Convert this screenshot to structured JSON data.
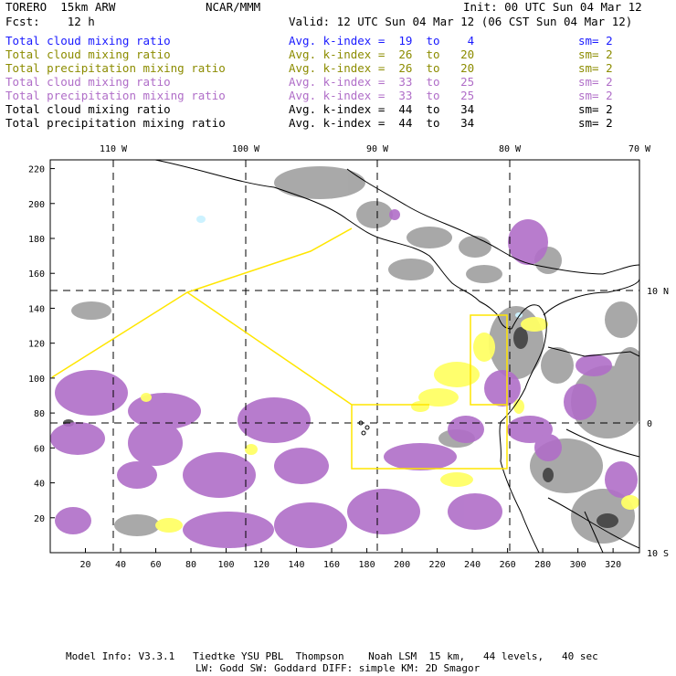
{
  "header": {
    "model": "TORERO  15km ARW",
    "org": "NCAR/MMM",
    "init": "Init: 00 UTC Sun 04 Mar 12",
    "fcst": "Fcst:    12 h",
    "valid": "Valid: 12 UTC Sun 04 Mar 12 (06 CST Sun 04 Mar 12)"
  },
  "legend": [
    {
      "field": "Total cloud mixing ratio",
      "kindex": "Avg. k-index =  19  to    4",
      "sm": "sm= 2",
      "color": "#1a1aff"
    },
    {
      "field": "Total cloud mixing ratio",
      "kindex": "Avg. k-index =  26  to   20",
      "sm": "sm= 2",
      "color": "#8c8c00"
    },
    {
      "field": "Total precipitation mixing ratio",
      "kindex": "Avg. k-index =  26  to   20",
      "sm": "sm= 2",
      "color": "#8c8c00"
    },
    {
      "field": "Total cloud mixing ratio",
      "kindex": "Avg. k-index =  33  to   25",
      "sm": "sm= 2",
      "color": "#b06ec8"
    },
    {
      "field": "Total precipitation mixing ratio",
      "kindex": "Avg. k-index =  33  to   25",
      "sm": "sm= 2",
      "color": "#b06ec8"
    },
    {
      "field": "Total cloud mixing ratio",
      "kindex": "Avg. k-index =  44  to   34",
      "sm": "sm= 2",
      "color": "#000000"
    },
    {
      "field": "Total precipitation mixing ratio",
      "kindex": "Avg. k-index =  44  to   34",
      "sm": "sm= 2",
      "color": "#000000"
    }
  ],
  "map": {
    "x_ticks": [
      "20",
      "40",
      "60",
      "80",
      "100",
      "120",
      "140",
      "160",
      "180",
      "200",
      "220",
      "240",
      "260",
      "280",
      "300",
      "320"
    ],
    "y_ticks": [
      "20",
      "40",
      "60",
      "80",
      "100",
      "120",
      "140",
      "160",
      "180",
      "200",
      "220"
    ],
    "lon_labels": [
      "110 W",
      "100 W",
      "90 W",
      "80 W",
      "70 W"
    ],
    "lat_labels": [
      "10 N",
      "0",
      "10 S"
    ],
    "colors": {
      "gray_cloud": "#9a9a9a",
      "purple_cloud": "#b06ec8",
      "yellow_cloud": "#ffff66",
      "domain_box": "#ffe600",
      "cyan_cloud": "#ccf2ff"
    }
  },
  "footer": {
    "line1": "Model Info: V3.3.1   Tiedtke YSU PBL  Thompson    Noah LSM  15 km,   44 levels,   40 sec",
    "line2": "LW: Godd SW: Goddard DIFF: simple KM: 2D Smagor"
  }
}
